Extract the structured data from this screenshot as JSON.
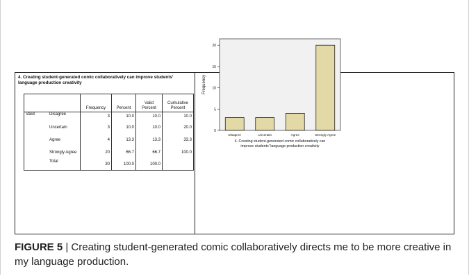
{
  "table": {
    "title": "4. Creating student-generated comic collaboratively can improve students' language production creativity",
    "headers": {
      "frequency": "Frequency",
      "percent": "Percent",
      "valid_percent": "Valid Percent",
      "cumulative_percent": "Cumulative Percent"
    },
    "group_label": "Valid",
    "rows": [
      {
        "label": "Disagree",
        "frequency": "3",
        "percent": "10.0",
        "valid": "10.0",
        "cumulative": "10.0"
      },
      {
        "label": "Uncertain",
        "frequency": "3",
        "percent": "10.0",
        "valid": "10.0",
        "cumulative": "20.0"
      },
      {
        "label": "Agree",
        "frequency": "4",
        "percent": "13.3",
        "valid": "13.3",
        "cumulative": "33.3"
      },
      {
        "label": "Strongly Agree",
        "frequency": "20",
        "percent": "66.7",
        "valid": "66.7",
        "cumulative": "100.0"
      },
      {
        "label": "Total",
        "frequency": "30",
        "percent": "100.0",
        "valid": "100.0",
        "cumulative": ""
      }
    ]
  },
  "chart_data": {
    "type": "bar",
    "categories": [
      "Disagree",
      "Uncertain",
      "Agree",
      "Strongly Agree"
    ],
    "values": [
      3,
      3,
      4,
      20
    ],
    "ylabel": "Frequency",
    "xlabel": "4. Creating student-generated comic collaboratively can improve students' language production creativity",
    "ylim": [
      0,
      21.5
    ],
    "yticks": [
      0,
      5,
      10,
      15,
      20
    ],
    "bar_color": "#e3d9a6",
    "grid": false
  },
  "caption": {
    "label": "FIGURE 5",
    "separator": " | ",
    "text": "Creating student-generated comic collaboratively directs me to be more creative in my language production."
  }
}
